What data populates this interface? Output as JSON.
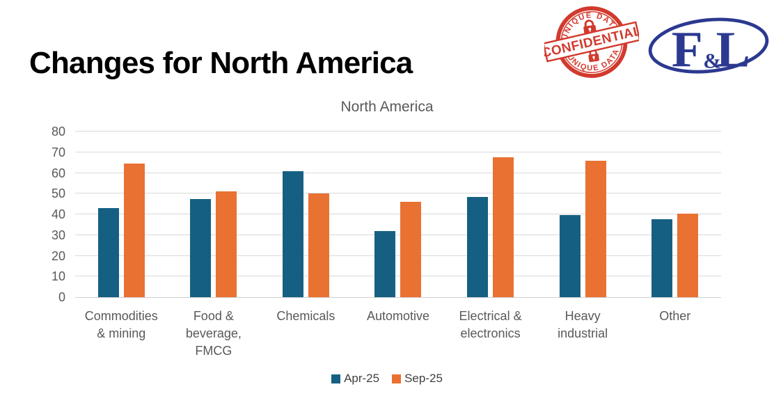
{
  "page": {
    "title": "Changes for North America"
  },
  "stamp": {
    "arc_top": "UNIQUE DATA",
    "arc_bottom": "UNIQUE DATA",
    "ribbon": "CONFIDENTIAL",
    "color": "#d23a2e"
  },
  "logo": {
    "letter_f": "F",
    "ampersand": "&",
    "letter_l": "L",
    "color": "#2b3990"
  },
  "chart_data": {
    "type": "bar",
    "title": "North America",
    "categories": [
      "Commodities & mining",
      "Food & beverage, FMCG",
      "Chemicals",
      "Automotive",
      "Electrical & electronics",
      "Heavy industrial",
      "Other"
    ],
    "series": [
      {
        "name": "Apr-25",
        "color": "#156082",
        "values": [
          43,
          47.5,
          61,
          32,
          48.5,
          39.8,
          37.5
        ]
      },
      {
        "name": "Sep-25",
        "color": "#E97132",
        "values": [
          64.5,
          51,
          50,
          46,
          67.5,
          66,
          40.5
        ]
      }
    ],
    "ylim": [
      0,
      80
    ],
    "yticks": [
      0,
      10,
      20,
      30,
      40,
      50,
      60,
      70,
      80
    ],
    "grid": true,
    "legend_position": "bottom",
    "colors": {
      "gridline": "#d9d9d9",
      "axis_text": "#595959",
      "chart_title_text": "#595959"
    }
  }
}
